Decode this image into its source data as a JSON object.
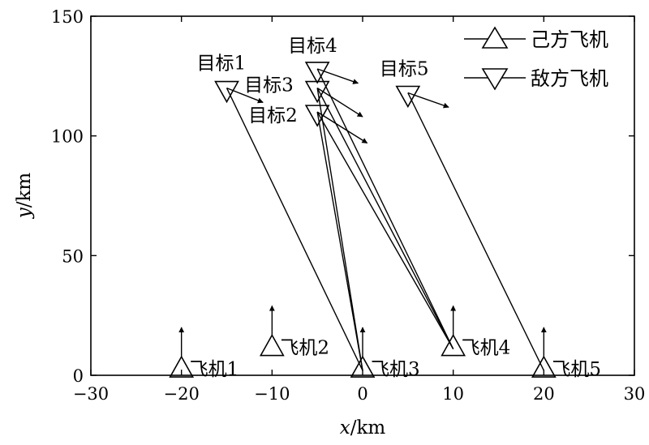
{
  "chart_data": {
    "type": "scatter",
    "xlabel_var": "x",
    "xlabel_unit": "/km",
    "ylabel_var": "y",
    "ylabel_unit": "/km",
    "xlim": [
      -30,
      30
    ],
    "ylim": [
      0,
      150
    ],
    "xticks": [
      -30,
      -20,
      -10,
      0,
      10,
      20,
      30
    ],
    "yticks": [
      0,
      50,
      100,
      150
    ],
    "grid": false,
    "legend_position": "top-right",
    "legend": [
      {
        "label": "己方飞机",
        "marker": "triangle-up"
      },
      {
        "label": "敌方飞机",
        "marker": "triangle-down"
      }
    ],
    "own_aircraft": [
      {
        "label": "飞机1",
        "x": -20,
        "y": 2
      },
      {
        "label": "飞机2",
        "x": -10,
        "y": 11
      },
      {
        "label": "飞机3",
        "x": 0,
        "y": 2
      },
      {
        "label": "飞机4",
        "x": 10,
        "y": 11
      },
      {
        "label": "飞机5",
        "x": 20,
        "y": 2
      }
    ],
    "targets": [
      {
        "label": "目标1",
        "x": -15,
        "y": 120
      },
      {
        "label": "目标2",
        "x": -5,
        "y": 110
      },
      {
        "label": "目标3",
        "x": -5,
        "y": 120
      },
      {
        "label": "目标4",
        "x": -5,
        "y": 128
      },
      {
        "label": "目标5",
        "x": 5,
        "y": 118
      }
    ],
    "own_heading_vectors": [
      {
        "from": [
          -20,
          2
        ],
        "to": [
          -20,
          20
        ]
      },
      {
        "from": [
          -10,
          11
        ],
        "to": [
          -10,
          29
        ]
      },
      {
        "from": [
          0,
          2
        ],
        "to": [
          0,
          20
        ]
      },
      {
        "from": [
          10,
          11
        ],
        "to": [
          10,
          29
        ]
      },
      {
        "from": [
          20,
          2
        ],
        "to": [
          20,
          20
        ]
      }
    ],
    "target_heading_vectors": [
      {
        "from": [
          -15,
          120
        ],
        "to": [
          -11,
          114
        ]
      },
      {
        "from": [
          -5,
          110
        ],
        "to": [
          0.5,
          97
        ]
      },
      {
        "from": [
          -5,
          120
        ],
        "to": [
          0,
          108
        ]
      },
      {
        "from": [
          -5,
          128
        ],
        "to": [
          -0.5,
          122
        ]
      },
      {
        "from": [
          5,
          118
        ],
        "to": [
          9.5,
          112
        ]
      }
    ],
    "assignment_lines": [
      {
        "from": [
          -15,
          120
        ],
        "to": [
          0,
          2
        ]
      },
      {
        "from": [
          -5,
          110
        ],
        "to": [
          0,
          2
        ]
      },
      {
        "from": [
          -5,
          110
        ],
        "to": [
          10,
          11
        ]
      },
      {
        "from": [
          -5,
          120
        ],
        "to": [
          0,
          2
        ]
      },
      {
        "from": [
          -5,
          120
        ],
        "to": [
          10,
          11
        ]
      },
      {
        "from": [
          -5,
          128
        ],
        "to": [
          10,
          11
        ]
      },
      {
        "from": [
          5,
          118
        ],
        "to": [
          20,
          2
        ]
      }
    ]
  }
}
